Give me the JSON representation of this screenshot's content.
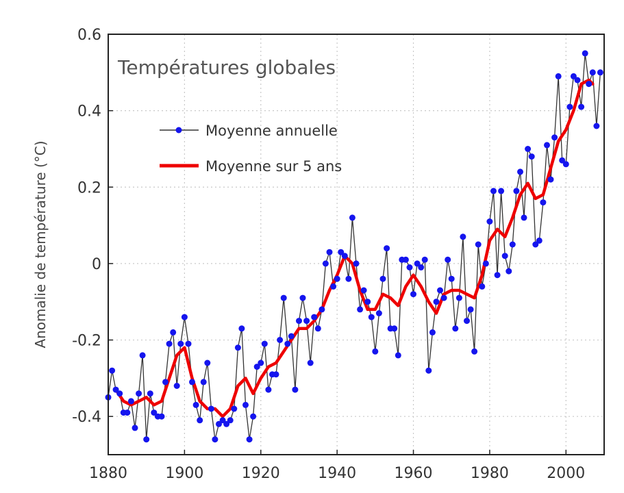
{
  "chart_data": {
    "type": "line",
    "title": "Températures globales",
    "xlabel": "",
    "ylabel": "Anomalie de température (°C)",
    "xlim": [
      1880,
      2010
    ],
    "ylim": [
      -0.5,
      0.6
    ],
    "xticks": [
      1880,
      1900,
      1920,
      1940,
      1960,
      1980,
      2000
    ],
    "yticks": [
      -0.4,
      -0.2,
      0,
      0.2,
      0.4,
      0.6
    ],
    "grid": true,
    "legend_position": "upper-left",
    "series": [
      {
        "name": "Moyenne annuelle",
        "color": "#1515ee",
        "line_color": "#333333",
        "marker": "circle",
        "x": [
          1880,
          1881,
          1882,
          1883,
          1884,
          1885,
          1886,
          1887,
          1888,
          1889,
          1890,
          1891,
          1892,
          1893,
          1894,
          1895,
          1896,
          1897,
          1898,
          1899,
          1900,
          1901,
          1902,
          1903,
          1904,
          1905,
          1906,
          1907,
          1908,
          1909,
          1910,
          1911,
          1912,
          1913,
          1914,
          1915,
          1916,
          1917,
          1918,
          1919,
          1920,
          1921,
          1922,
          1923,
          1924,
          1925,
          1926,
          1927,
          1928,
          1929,
          1930,
          1931,
          1932,
          1933,
          1934,
          1935,
          1936,
          1937,
          1938,
          1939,
          1940,
          1941,
          1942,
          1943,
          1944,
          1945,
          1946,
          1947,
          1948,
          1949,
          1950,
          1951,
          1952,
          1953,
          1954,
          1955,
          1956,
          1957,
          1958,
          1959,
          1960,
          1961,
          1962,
          1963,
          1964,
          1965,
          1966,
          1967,
          1968,
          1969,
          1970,
          1971,
          1972,
          1973,
          1974,
          1975,
          1976,
          1977,
          1978,
          1979,
          1980,
          1981,
          1982,
          1983,
          1984,
          1985,
          1986,
          1987,
          1988,
          1989,
          1990,
          1991,
          1992,
          1993,
          1994,
          1995,
          1996,
          1997,
          1998,
          1999,
          2000,
          2001,
          2002,
          2003,
          2004,
          2005,
          2006,
          2007,
          2008,
          2009
        ],
        "y": [
          -0.35,
          -0.28,
          -0.33,
          -0.34,
          -0.39,
          -0.39,
          -0.36,
          -0.43,
          -0.34,
          -0.24,
          -0.46,
          -0.34,
          -0.39,
          -0.4,
          -0.4,
          -0.31,
          -0.21,
          -0.18,
          -0.32,
          -0.21,
          -0.14,
          -0.21,
          -0.31,
          -0.37,
          -0.41,
          -0.31,
          -0.26,
          -0.38,
          -0.46,
          -0.42,
          -0.41,
          -0.42,
          -0.41,
          -0.38,
          -0.22,
          -0.17,
          -0.37,
          -0.46,
          -0.4,
          -0.27,
          -0.26,
          -0.21,
          -0.33,
          -0.29,
          -0.29,
          -0.2,
          -0.09,
          -0.21,
          -0.19,
          -0.33,
          -0.15,
          -0.09,
          -0.15,
          -0.26,
          -0.14,
          -0.17,
          -0.12,
          0.0,
          0.03,
          -0.06,
          -0.04,
          0.03,
          0.02,
          -0.04,
          0.12,
          0.0,
          -0.12,
          -0.07,
          -0.1,
          -0.14,
          -0.23,
          -0.13,
          -0.04,
          0.04,
          -0.17,
          -0.17,
          -0.24,
          0.01,
          0.01,
          -0.01,
          -0.08,
          0.0,
          -0.01,
          0.01,
          -0.28,
          -0.18,
          -0.1,
          -0.07,
          -0.09,
          0.01,
          -0.04,
          -0.17,
          -0.09,
          0.07,
          -0.15,
          -0.12,
          -0.23,
          0.05,
          -0.06,
          0.0,
          0.11,
          0.19,
          -0.03,
          0.19,
          0.02,
          -0.02,
          0.05,
          0.19,
          0.24,
          0.12,
          0.3,
          0.28,
          0.05,
          0.06,
          0.16,
          0.31,
          0.22,
          0.33,
          0.49,
          0.27,
          0.26,
          0.41,
          0.49,
          0.48,
          0.41,
          0.55,
          0.47,
          0.5,
          0.36,
          0.5
        ]
      },
      {
        "name": "Moyenne sur 5 ans",
        "color": "#ee0000",
        "x": [
          1882,
          1884,
          1886,
          1888,
          1890,
          1892,
          1894,
          1896,
          1898,
          1900,
          1902,
          1904,
          1906,
          1908,
          1910,
          1912,
          1914,
          1916,
          1918,
          1920,
          1922,
          1924,
          1926,
          1928,
          1930,
          1932,
          1934,
          1936,
          1938,
          1940,
          1942,
          1944,
          1946,
          1948,
          1950,
          1952,
          1954,
          1956,
          1958,
          1960,
          1962,
          1964,
          1966,
          1968,
          1970,
          1972,
          1974,
          1976,
          1978,
          1980,
          1982,
          1984,
          1986,
          1988,
          1990,
          1992,
          1994,
          1996,
          1998,
          2000,
          2002,
          2004,
          2006,
          2007
        ],
        "y": [
          -0.33,
          -0.36,
          -0.37,
          -0.36,
          -0.35,
          -0.37,
          -0.36,
          -0.3,
          -0.24,
          -0.22,
          -0.3,
          -0.36,
          -0.38,
          -0.38,
          -0.4,
          -0.38,
          -0.32,
          -0.3,
          -0.34,
          -0.3,
          -0.27,
          -0.26,
          -0.23,
          -0.2,
          -0.17,
          -0.17,
          -0.15,
          -0.12,
          -0.07,
          -0.03,
          0.02,
          0.0,
          -0.07,
          -0.12,
          -0.12,
          -0.08,
          -0.09,
          -0.11,
          -0.06,
          -0.03,
          -0.06,
          -0.1,
          -0.13,
          -0.08,
          -0.07,
          -0.07,
          -0.08,
          -0.09,
          -0.03,
          0.06,
          0.09,
          0.07,
          0.12,
          0.18,
          0.21,
          0.17,
          0.18,
          0.25,
          0.32,
          0.35,
          0.4,
          0.47,
          0.48,
          0.47
        ]
      }
    ]
  }
}
